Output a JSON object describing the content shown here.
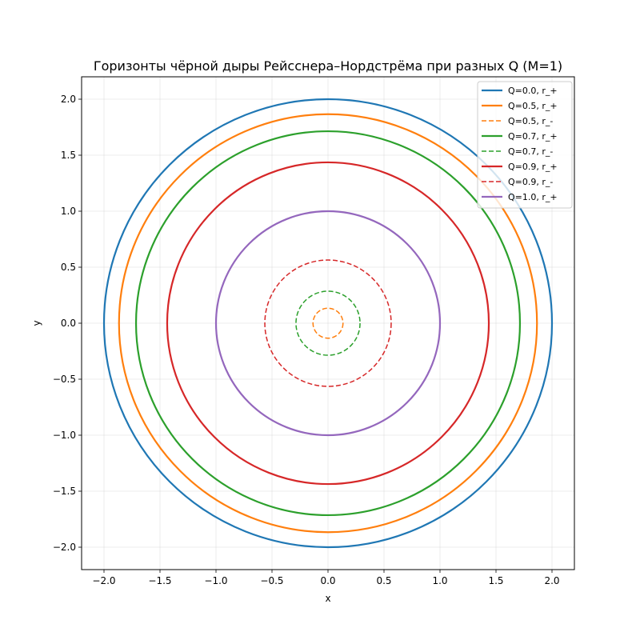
{
  "chart_data": {
    "type": "line",
    "title": "Горизонты чёрной дыры Рейсснера–Нордстрёма при разных Q (M=1)",
    "xlabel": "x",
    "ylabel": "y",
    "xlim": [
      -2.2,
      2.2
    ],
    "ylim": [
      -2.2,
      2.2
    ],
    "xticks": [
      -2.0,
      -1.5,
      -1.0,
      -0.5,
      0.0,
      0.5,
      1.0,
      1.5,
      2.0
    ],
    "yticks": [
      -2.0,
      -1.5,
      -1.0,
      -0.5,
      0.0,
      0.5,
      1.0,
      1.5,
      2.0
    ],
    "xtick_labels": [
      "−2.0",
      "−1.5",
      "−1.0",
      "−0.5",
      "0.0",
      "0.5",
      "1.0",
      "1.5",
      "2.0"
    ],
    "ytick_labels": [
      "−2.0",
      "−1.5",
      "−1.0",
      "−0.5",
      "0.0",
      "0.5",
      "1.0",
      "1.5",
      "2.0"
    ],
    "grid": true,
    "legend_position": "top-right",
    "series": [
      {
        "name": "Q=0.0, r_+",
        "radius": 2.0,
        "color": "#1f77b4",
        "style": "solid"
      },
      {
        "name": "Q=0.5, r_+",
        "radius": 1.866,
        "color": "#ff7f0e",
        "style": "solid"
      },
      {
        "name": "Q=0.5, r_-",
        "radius": 0.134,
        "color": "#ff7f0e",
        "style": "dashed"
      },
      {
        "name": "Q=0.7, r_+",
        "radius": 1.714,
        "color": "#2ca02c",
        "style": "solid"
      },
      {
        "name": "Q=0.7, r_-",
        "radius": 0.286,
        "color": "#2ca02c",
        "style": "dashed"
      },
      {
        "name": "Q=0.9, r_+",
        "radius": 1.436,
        "color": "#d62728",
        "style": "solid"
      },
      {
        "name": "Q=0.9, r_-",
        "radius": 0.564,
        "color": "#d62728",
        "style": "dashed"
      },
      {
        "name": "Q=1.0, r_+",
        "radius": 1.0,
        "color": "#9467bd",
        "style": "solid"
      }
    ]
  }
}
